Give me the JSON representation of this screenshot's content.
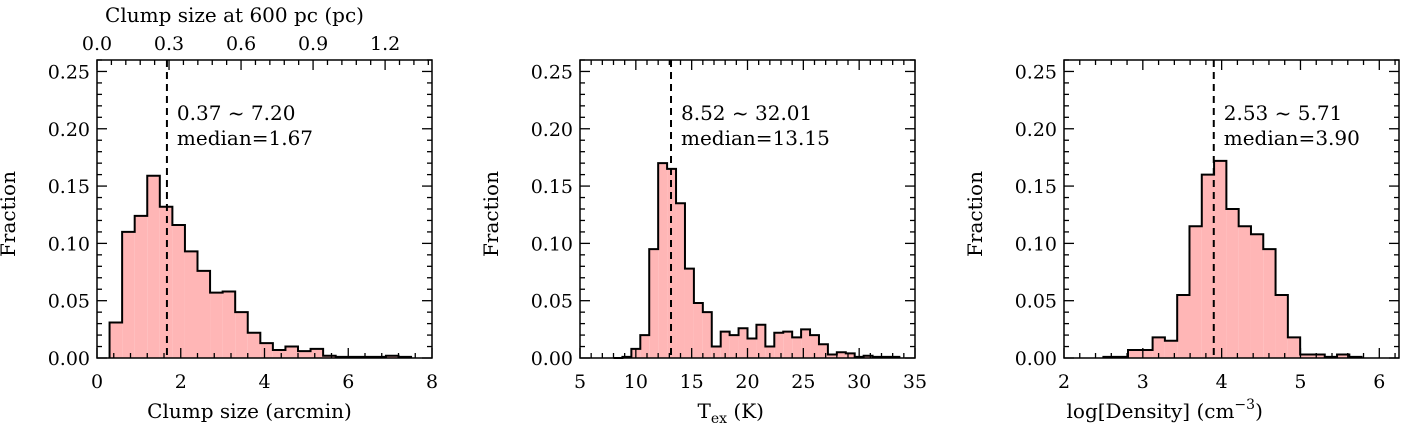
{
  "chart_data": [
    {
      "type": "bar",
      "xlabel": "Clump size (arcmin)",
      "ylabel": "Fraction",
      "top_xlabel": "Clump size at 600 pc (pc)",
      "xlim": [
        0,
        8
      ],
      "ylim": [
        0,
        0.26
      ],
      "xticks": [
        0,
        2,
        4,
        6,
        8
      ],
      "xtick_labels": [
        "0",
        "2",
        "4",
        "6",
        "8"
      ],
      "top_xticks": [
        0.0,
        0.3,
        0.6,
        0.9,
        1.2
      ],
      "top_xtick_labels": [
        "0.0",
        "0.3",
        "0.6",
        "0.9",
        "1.2"
      ],
      "yticks": [
        0,
        0.05,
        0.1,
        0.15,
        0.2,
        0.25
      ],
      "ytick_labels": [
        "0.00",
        "0.05",
        "0.10",
        "0.15",
        "0.20",
        "0.25"
      ],
      "bin_start": 0.3,
      "bin_width": 0.3,
      "values": [
        0.031,
        0.11,
        0.124,
        0.159,
        0.132,
        0.116,
        0.093,
        0.076,
        0.057,
        0.058,
        0.04,
        0.022,
        0.013,
        0.007,
        0.01,
        0.006,
        0.008,
        0.002,
        0.001,
        0.001,
        0.001,
        0.001,
        0.002,
        0.001
      ],
      "median_line": 1.67,
      "annotation_range": "0.37 ~ 7.20",
      "annotation_median": "median=1.67",
      "fill_color": "#ffb6b6",
      "edge_color": "#000000"
    },
    {
      "type": "bar",
      "xlabel_main": "T",
      "xlabel_sub": "ex",
      "xlabel_unit": "(K)",
      "ylabel": "Fraction",
      "xlim": [
        5,
        35
      ],
      "ylim": [
        0,
        0.26
      ],
      "xticks": [
        5,
        10,
        15,
        20,
        25,
        30,
        35
      ],
      "xtick_labels": [
        "5",
        "10",
        "15",
        "20",
        "25",
        "30",
        "35"
      ],
      "yticks": [
        0,
        0.05,
        0.1,
        0.15,
        0.2,
        0.25
      ],
      "ytick_labels": [
        "0.00",
        "0.05",
        "0.10",
        "0.15",
        "0.20",
        "0.25"
      ],
      "bin_start": 8.0,
      "bin_width": 0.8,
      "values": [
        0.0,
        0.001,
        0.008,
        0.02,
        0.095,
        0.17,
        0.165,
        0.135,
        0.078,
        0.048,
        0.04,
        0.01,
        0.023,
        0.02,
        0.026,
        0.017,
        0.029,
        0.01,
        0.022,
        0.023,
        0.018,
        0.025,
        0.02,
        0.012,
        0.003,
        0.005,
        0.004,
        0.001,
        0.002,
        0.001,
        0.001,
        0.001
      ],
      "median_line": 13.15,
      "annotation_range": "8.52 ~ 32.01",
      "annotation_median": "median=13.15",
      "fill_color": "#ffb6b6",
      "edge_color": "#000000"
    },
    {
      "type": "bar",
      "xlabel_main": "log[Density] (cm",
      "xlabel_sup": "−3",
      "xlabel_end": ")",
      "ylabel": "Fraction",
      "xlim": [
        2,
        6.25
      ],
      "ylim": [
        0,
        0.26
      ],
      "xticks": [
        2,
        3,
        4,
        5,
        6
      ],
      "xtick_labels": [
        "2",
        "3",
        "4",
        "5",
        "6"
      ],
      "yticks": [
        0,
        0.05,
        0.1,
        0.15,
        0.2,
        0.25
      ],
      "ytick_labels": [
        "0.00",
        "0.05",
        "0.10",
        "0.15",
        "0.20",
        "0.25"
      ],
      "bin_start": 2.5,
      "bin_width": 0.156,
      "values": [
        0.001,
        0.001,
        0.007,
        0.007,
        0.018,
        0.015,
        0.055,
        0.115,
        0.16,
        0.172,
        0.13,
        0.115,
        0.108,
        0.095,
        0.055,
        0.018,
        0.003,
        0.003,
        0.001,
        0.003,
        0.001
      ],
      "median_line": 3.9,
      "annotation_range": "2.53 ~ 5.71",
      "annotation_median": "median=3.90",
      "fill_color": "#ffb6b6",
      "edge_color": "#000000"
    }
  ]
}
